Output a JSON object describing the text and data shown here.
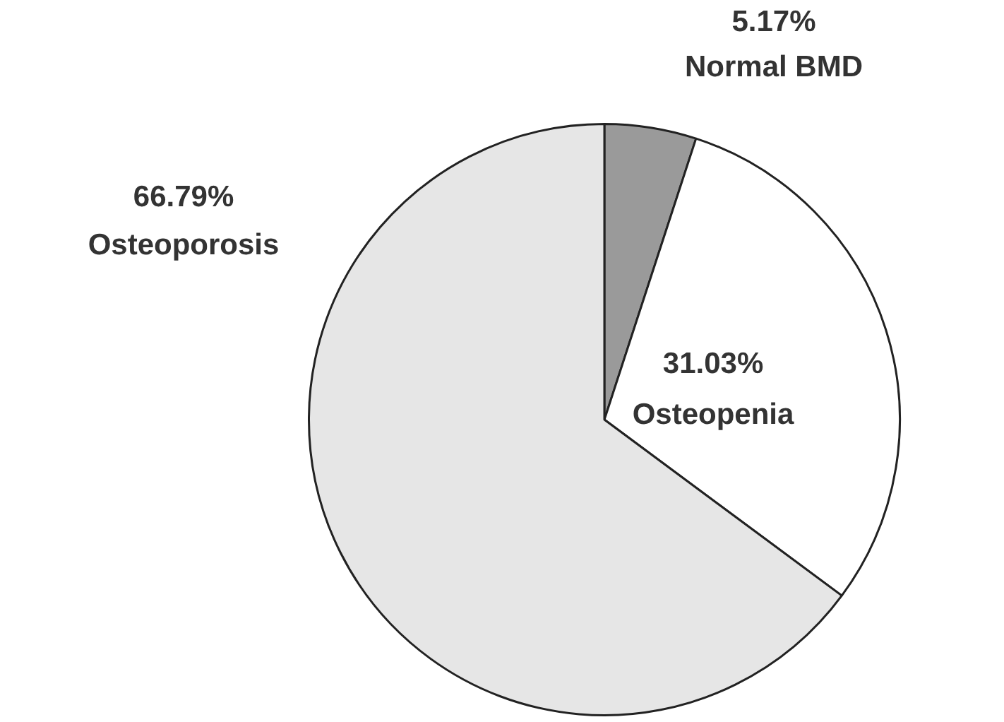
{
  "chart_data": {
    "type": "pie",
    "categories": [
      "Normal BMD",
      "Osteopenia",
      "Osteoporosis"
    ],
    "values": [
      5.17,
      31.03,
      66.79
    ],
    "value_labels": [
      "5.17%",
      "31.03%",
      "66.79%"
    ],
    "colors": [
      "#9a9a9a",
      "#ffffff",
      "#e6e6e6"
    ],
    "legend": false
  }
}
